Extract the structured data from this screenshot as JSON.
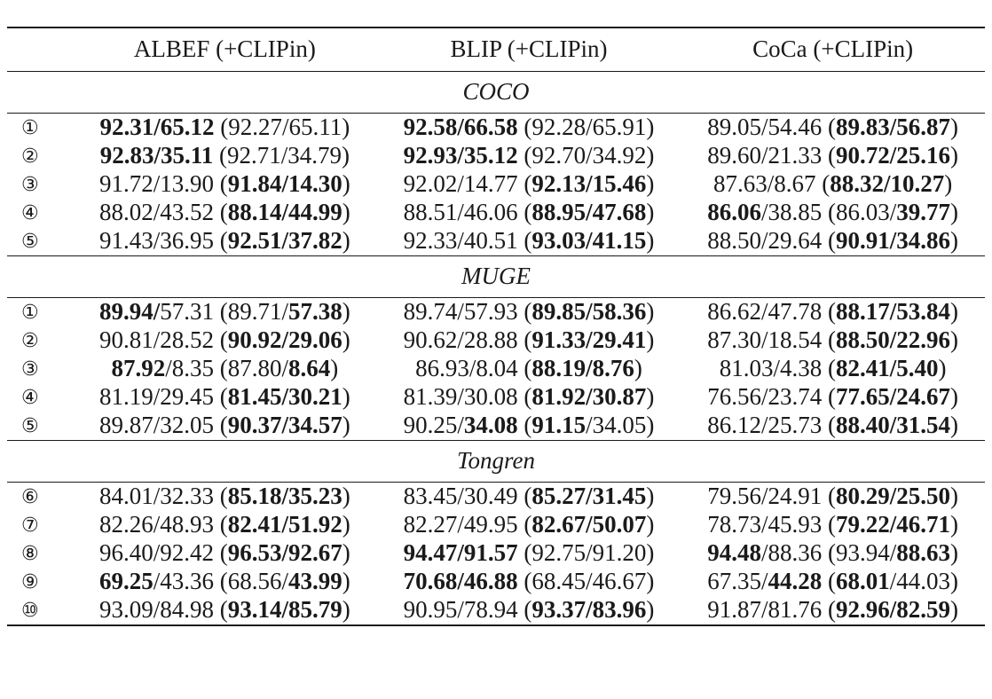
{
  "table": {
    "columns": [
      "",
      "ALBEF (+CLIPin)",
      "BLIP (+CLIPin)",
      "CoCa (+CLIPin)"
    ],
    "sections": [
      {
        "name": "COCO",
        "rows": [
          {
            "idx": "①",
            "cells": [
              [
                {
                  "t": "92.31/65.12",
                  "b": true
                },
                {
                  "t": " (92.27/65.11)"
                }
              ],
              [
                {
                  "t": "92.58/66.58",
                  "b": true
                },
                {
                  "t": " (92.28/65.91)"
                }
              ],
              [
                {
                  "t": "89.05/54.46 ("
                },
                {
                  "t": "89.83/56.87",
                  "b": true
                },
                {
                  "t": ")"
                }
              ]
            ]
          },
          {
            "idx": "②",
            "cells": [
              [
                {
                  "t": "92.83/35.11",
                  "b": true
                },
                {
                  "t": " (92.71/34.79)"
                }
              ],
              [
                {
                  "t": "92.93/35.12",
                  "b": true
                },
                {
                  "t": " (92.70/34.92)"
                }
              ],
              [
                {
                  "t": "89.60/21.33 ("
                },
                {
                  "t": "90.72/25.16",
                  "b": true
                },
                {
                  "t": ")"
                }
              ]
            ]
          },
          {
            "idx": "③",
            "cells": [
              [
                {
                  "t": "91.72/13.90 ("
                },
                {
                  "t": "91.84/14.30",
                  "b": true
                },
                {
                  "t": ")"
                }
              ],
              [
                {
                  "t": "92.02/14.77 ("
                },
                {
                  "t": "92.13/15.46",
                  "b": true
                },
                {
                  "t": ")"
                }
              ],
              [
                {
                  "t": "87.63/8.67 ("
                },
                {
                  "t": "88.32/10.27",
                  "b": true
                },
                {
                  "t": ")"
                }
              ]
            ]
          },
          {
            "idx": "④",
            "cells": [
              [
                {
                  "t": "88.02/43.52 ("
                },
                {
                  "t": "88.14/44.99",
                  "b": true
                },
                {
                  "t": ")"
                }
              ],
              [
                {
                  "t": "88.51/46.06 ("
                },
                {
                  "t": "88.95/47.68",
                  "b": true
                },
                {
                  "t": ")"
                }
              ],
              [
                {
                  "t": "86.06",
                  "b": true
                },
                {
                  "t": "/38.85 (86.03/"
                },
                {
                  "t": "39.77",
                  "b": true
                },
                {
                  "t": ")"
                }
              ]
            ]
          },
          {
            "idx": "⑤",
            "cells": [
              [
                {
                  "t": "91.43/36.95 ("
                },
                {
                  "t": "92.51/37.82",
                  "b": true
                },
                {
                  "t": ")"
                }
              ],
              [
                {
                  "t": "92.33/40.51 ("
                },
                {
                  "t": "93.03/41.15",
                  "b": true
                },
                {
                  "t": ")"
                }
              ],
              [
                {
                  "t": "88.50/29.64 ("
                },
                {
                  "t": "90.91/34.86",
                  "b": true
                },
                {
                  "t": ")"
                }
              ]
            ]
          }
        ]
      },
      {
        "name": "MUGE",
        "rows": [
          {
            "idx": "①",
            "cells": [
              [
                {
                  "t": "89.94/",
                  "b": true
                },
                {
                  "t": "57.31 (89.71/"
                },
                {
                  "t": "57.38",
                  "b": true
                },
                {
                  "t": ")"
                }
              ],
              [
                {
                  "t": "89.74/57.93 ("
                },
                {
                  "t": "89.85/58.36",
                  "b": true
                },
                {
                  "t": ")"
                }
              ],
              [
                {
                  "t": "86.62/47.78 ("
                },
                {
                  "t": "88.17/53.84",
                  "b": true
                },
                {
                  "t": ")"
                }
              ]
            ]
          },
          {
            "idx": "②",
            "cells": [
              [
                {
                  "t": "90.81/28.52 ("
                },
                {
                  "t": "90.92/29.06",
                  "b": true
                },
                {
                  "t": ")"
                }
              ],
              [
                {
                  "t": "90.62/28.88 ("
                },
                {
                  "t": "91.33/29.41",
                  "b": true
                },
                {
                  "t": ")"
                }
              ],
              [
                {
                  "t": "87.30/18.54 ("
                },
                {
                  "t": "88.50/22.96",
                  "b": true
                },
                {
                  "t": ")"
                }
              ]
            ]
          },
          {
            "idx": "③",
            "cells": [
              [
                {
                  "t": "87.92",
                  "b": true
                },
                {
                  "t": "/8.35 (87.80/"
                },
                {
                  "t": "8.64",
                  "b": true
                },
                {
                  "t": ")"
                }
              ],
              [
                {
                  "t": "86.93/8.04 ("
                },
                {
                  "t": "88.19/8.76",
                  "b": true
                },
                {
                  "t": ")"
                }
              ],
              [
                {
                  "t": "81.03/4.38 ("
                },
                {
                  "t": "82.41/5.40",
                  "b": true
                },
                {
                  "t": ")"
                }
              ]
            ]
          },
          {
            "idx": "④",
            "cells": [
              [
                {
                  "t": "81.19/29.45 ("
                },
                {
                  "t": "81.45/30.21",
                  "b": true
                },
                {
                  "t": ")"
                }
              ],
              [
                {
                  "t": "81.39/30.08 ("
                },
                {
                  "t": "81.92/30.87",
                  "b": true
                },
                {
                  "t": ")"
                }
              ],
              [
                {
                  "t": "76.56/23.74 ("
                },
                {
                  "t": "77.65/24.67",
                  "b": true
                },
                {
                  "t": ")"
                }
              ]
            ]
          },
          {
            "idx": "⑤",
            "cells": [
              [
                {
                  "t": "89.87/32.05 ("
                },
                {
                  "t": "90.37/34.57",
                  "b": true
                },
                {
                  "t": ")"
                }
              ],
              [
                {
                  "t": "90.25/"
                },
                {
                  "t": "34.08",
                  "b": true
                },
                {
                  "t": " ("
                },
                {
                  "t": "91.15",
                  "b": true
                },
                {
                  "t": "/34.05)"
                }
              ],
              [
                {
                  "t": "86.12/25.73 ("
                },
                {
                  "t": "88.40/31.54",
                  "b": true
                },
                {
                  "t": ")"
                }
              ]
            ]
          }
        ]
      },
      {
        "name": "Tongren",
        "rows": [
          {
            "idx": "⑥",
            "cells": [
              [
                {
                  "t": "84.01/32.33 ("
                },
                {
                  "t": "85.18/35.23",
                  "b": true
                },
                {
                  "t": ")"
                }
              ],
              [
                {
                  "t": "83.45/30.49 ("
                },
                {
                  "t": "85.27/31.45",
                  "b": true
                },
                {
                  "t": ")"
                }
              ],
              [
                {
                  "t": "79.56/24.91 ("
                },
                {
                  "t": "80.29/25.50",
                  "b": true
                },
                {
                  "t": ")"
                }
              ]
            ]
          },
          {
            "idx": "⑦",
            "cells": [
              [
                {
                  "t": "82.26/48.93 ("
                },
                {
                  "t": "82.41/51.92",
                  "b": true
                },
                {
                  "t": ")"
                }
              ],
              [
                {
                  "t": "82.27/49.95 ("
                },
                {
                  "t": "82.67/50.07",
                  "b": true
                },
                {
                  "t": ")"
                }
              ],
              [
                {
                  "t": "78.73/45.93 ("
                },
                {
                  "t": "79.22/46.71",
                  "b": true
                },
                {
                  "t": ")"
                }
              ]
            ]
          },
          {
            "idx": "⑧",
            "cells": [
              [
                {
                  "t": "96.40/92.42 ("
                },
                {
                  "t": "96.53/92.67",
                  "b": true
                },
                {
                  "t": ")"
                }
              ],
              [
                {
                  "t": "94.47/91.57",
                  "b": true
                },
                {
                  "t": " (92.75/91.20)"
                }
              ],
              [
                {
                  "t": "94.48",
                  "b": true
                },
                {
                  "t": "/88.36 (93.94/"
                },
                {
                  "t": "88.63",
                  "b": true
                },
                {
                  "t": ")"
                }
              ]
            ]
          },
          {
            "idx": "⑨",
            "cells": [
              [
                {
                  "t": "69.25",
                  "b": true
                },
                {
                  "t": "/43.36 (68.56/"
                },
                {
                  "t": "43.99",
                  "b": true
                },
                {
                  "t": ")"
                }
              ],
              [
                {
                  "t": "70.68/46.88",
                  "b": true
                },
                {
                  "t": " (68.45/46.67)"
                }
              ],
              [
                {
                  "t": "67.35/"
                },
                {
                  "t": "44.28",
                  "b": true
                },
                {
                  "t": " ("
                },
                {
                  "t": "68.01",
                  "b": true
                },
                {
                  "t": "/44.03)"
                }
              ]
            ]
          },
          {
            "idx": "⑩",
            "cells": [
              [
                {
                  "t": "93.09/84.98 ("
                },
                {
                  "t": "93.14/85.79",
                  "b": true
                },
                {
                  "t": ")"
                }
              ],
              [
                {
                  "t": "90.95/78.94 ("
                },
                {
                  "t": "93.37/83.96",
                  "b": true
                },
                {
                  "t": ")"
                }
              ],
              [
                {
                  "t": "91.87/81.76 ("
                },
                {
                  "t": "92.96/82.59",
                  "b": true
                },
                {
                  "t": ")"
                }
              ]
            ]
          }
        ]
      }
    ]
  }
}
